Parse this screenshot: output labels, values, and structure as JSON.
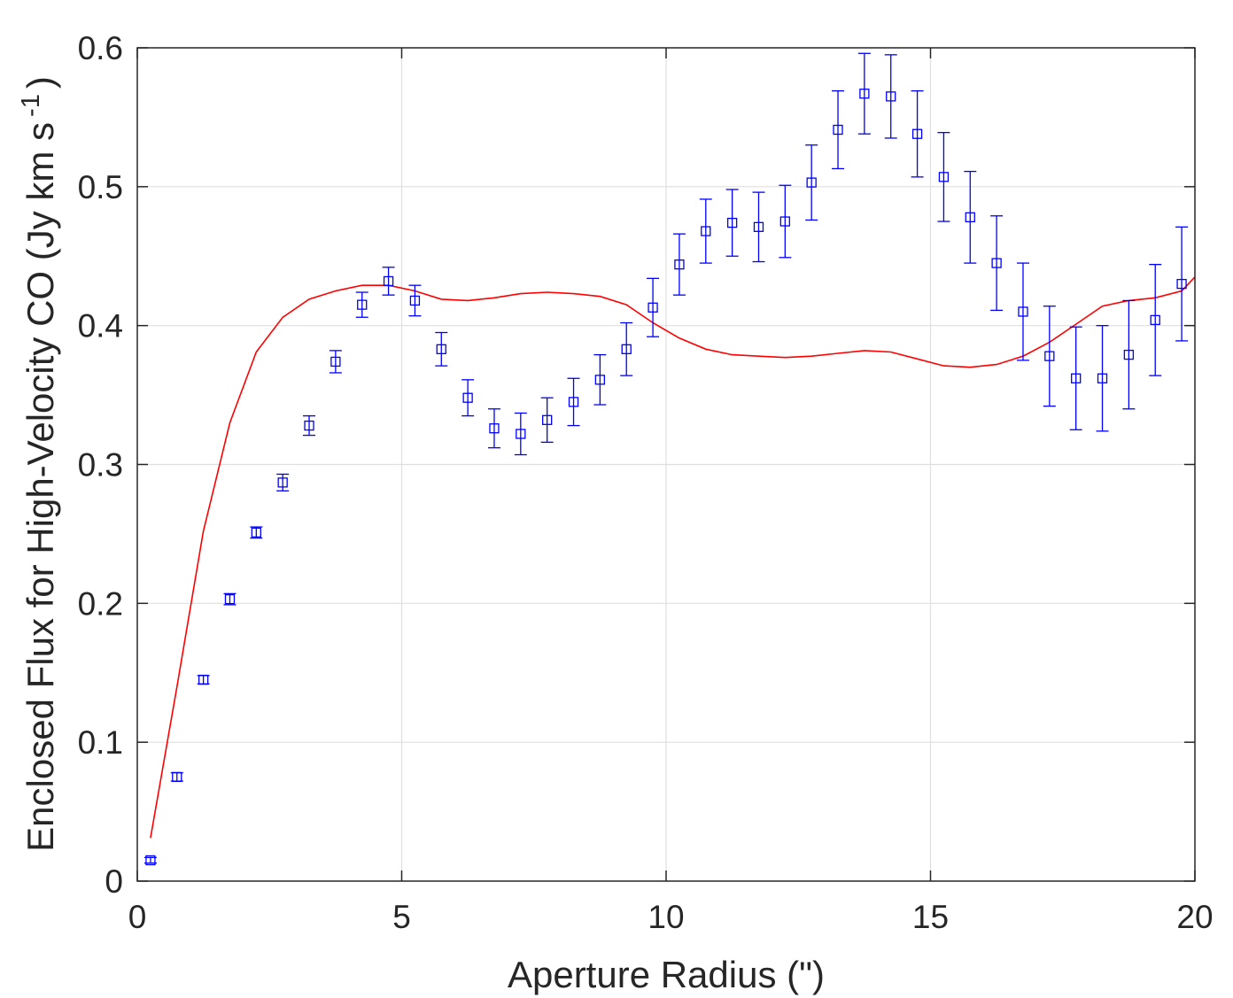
{
  "chart_data": {
    "type": "scatter",
    "xlabel": "Aperture Radius (\")",
    "ylabel": "Enclosed Flux for High-Velocity CO (Jy km s",
    "ylabel_superscript": "-1",
    "ylabel_close": ")",
    "xlim": [
      0,
      20
    ],
    "ylim": [
      0,
      0.6
    ],
    "xticks": [
      0,
      5,
      10,
      15,
      20
    ],
    "yticks": [
      0,
      0.1,
      0.2,
      0.3,
      0.4,
      0.5,
      0.6
    ],
    "xtick_labels": [
      "0",
      "5",
      "10",
      "15",
      "20"
    ],
    "ytick_labels": [
      "0",
      "0.1",
      "0.2",
      "0.3",
      "0.4",
      "0.5",
      "0.6"
    ],
    "grid": true,
    "colors": {
      "data": "#0000ff",
      "model": "#ff0000",
      "grid": "#dfdfdf",
      "axes": "#262626"
    },
    "series": [
      {
        "type": "scatter-errorbar",
        "marker": "square",
        "x": [
          0.25,
          0.75,
          1.25,
          1.75,
          2.25,
          2.75,
          3.25,
          3.75,
          4.25,
          4.75,
          5.25,
          5.75,
          6.25,
          6.75,
          7.25,
          7.75,
          8.25,
          8.75,
          9.25,
          9.75,
          10.25,
          10.75,
          11.25,
          11.75,
          12.25,
          12.75,
          13.25,
          13.75,
          14.25,
          14.75,
          15.25,
          15.75,
          16.25,
          16.75,
          17.25,
          17.75,
          18.25,
          18.75,
          19.25,
          19.75
        ],
        "y": [
          0.015,
          0.075,
          0.145,
          0.203,
          0.251,
          0.287,
          0.328,
          0.374,
          0.415,
          0.432,
          0.418,
          0.383,
          0.348,
          0.326,
          0.322,
          0.332,
          0.345,
          0.361,
          0.383,
          0.413,
          0.444,
          0.468,
          0.474,
          0.471,
          0.475,
          0.503,
          0.541,
          0.567,
          0.565,
          0.538,
          0.507,
          0.478,
          0.445,
          0.41,
          0.378,
          0.362,
          0.362,
          0.379,
          0.404,
          0.43
        ],
        "yerr": [
          0.002,
          0.003,
          0.003,
          0.004,
          0.004,
          0.006,
          0.007,
          0.008,
          0.009,
          0.01,
          0.011,
          0.012,
          0.013,
          0.014,
          0.015,
          0.016,
          0.017,
          0.018,
          0.019,
          0.021,
          0.022,
          0.023,
          0.024,
          0.025,
          0.026,
          0.027,
          0.028,
          0.029,
          0.03,
          0.031,
          0.032,
          0.033,
          0.034,
          0.035,
          0.036,
          0.037,
          0.038,
          0.039,
          0.04,
          0.041
        ]
      },
      {
        "type": "line",
        "x": [
          0.25,
          0.75,
          1.25,
          1.75,
          2.25,
          2.75,
          3.25,
          3.75,
          4.25,
          4.75,
          5.25,
          5.75,
          6.25,
          6.75,
          7.25,
          7.75,
          8.25,
          8.75,
          9.25,
          9.75,
          10.25,
          10.75,
          11.25,
          11.75,
          12.25,
          12.75,
          13.25,
          13.75,
          14.25,
          14.75,
          15.25,
          15.75,
          16.25,
          16.75,
          17.25,
          17.75,
          18.25,
          18.75,
          19.25,
          19.75,
          20.0
        ],
        "y": [
          0.031,
          0.14,
          0.252,
          0.33,
          0.381,
          0.406,
          0.419,
          0.425,
          0.429,
          0.429,
          0.425,
          0.419,
          0.418,
          0.42,
          0.423,
          0.424,
          0.423,
          0.421,
          0.415,
          0.402,
          0.391,
          0.383,
          0.379,
          0.378,
          0.377,
          0.378,
          0.38,
          0.382,
          0.381,
          0.376,
          0.371,
          0.37,
          0.372,
          0.378,
          0.388,
          0.401,
          0.414,
          0.418,
          0.42,
          0.425,
          0.435
        ]
      }
    ]
  }
}
